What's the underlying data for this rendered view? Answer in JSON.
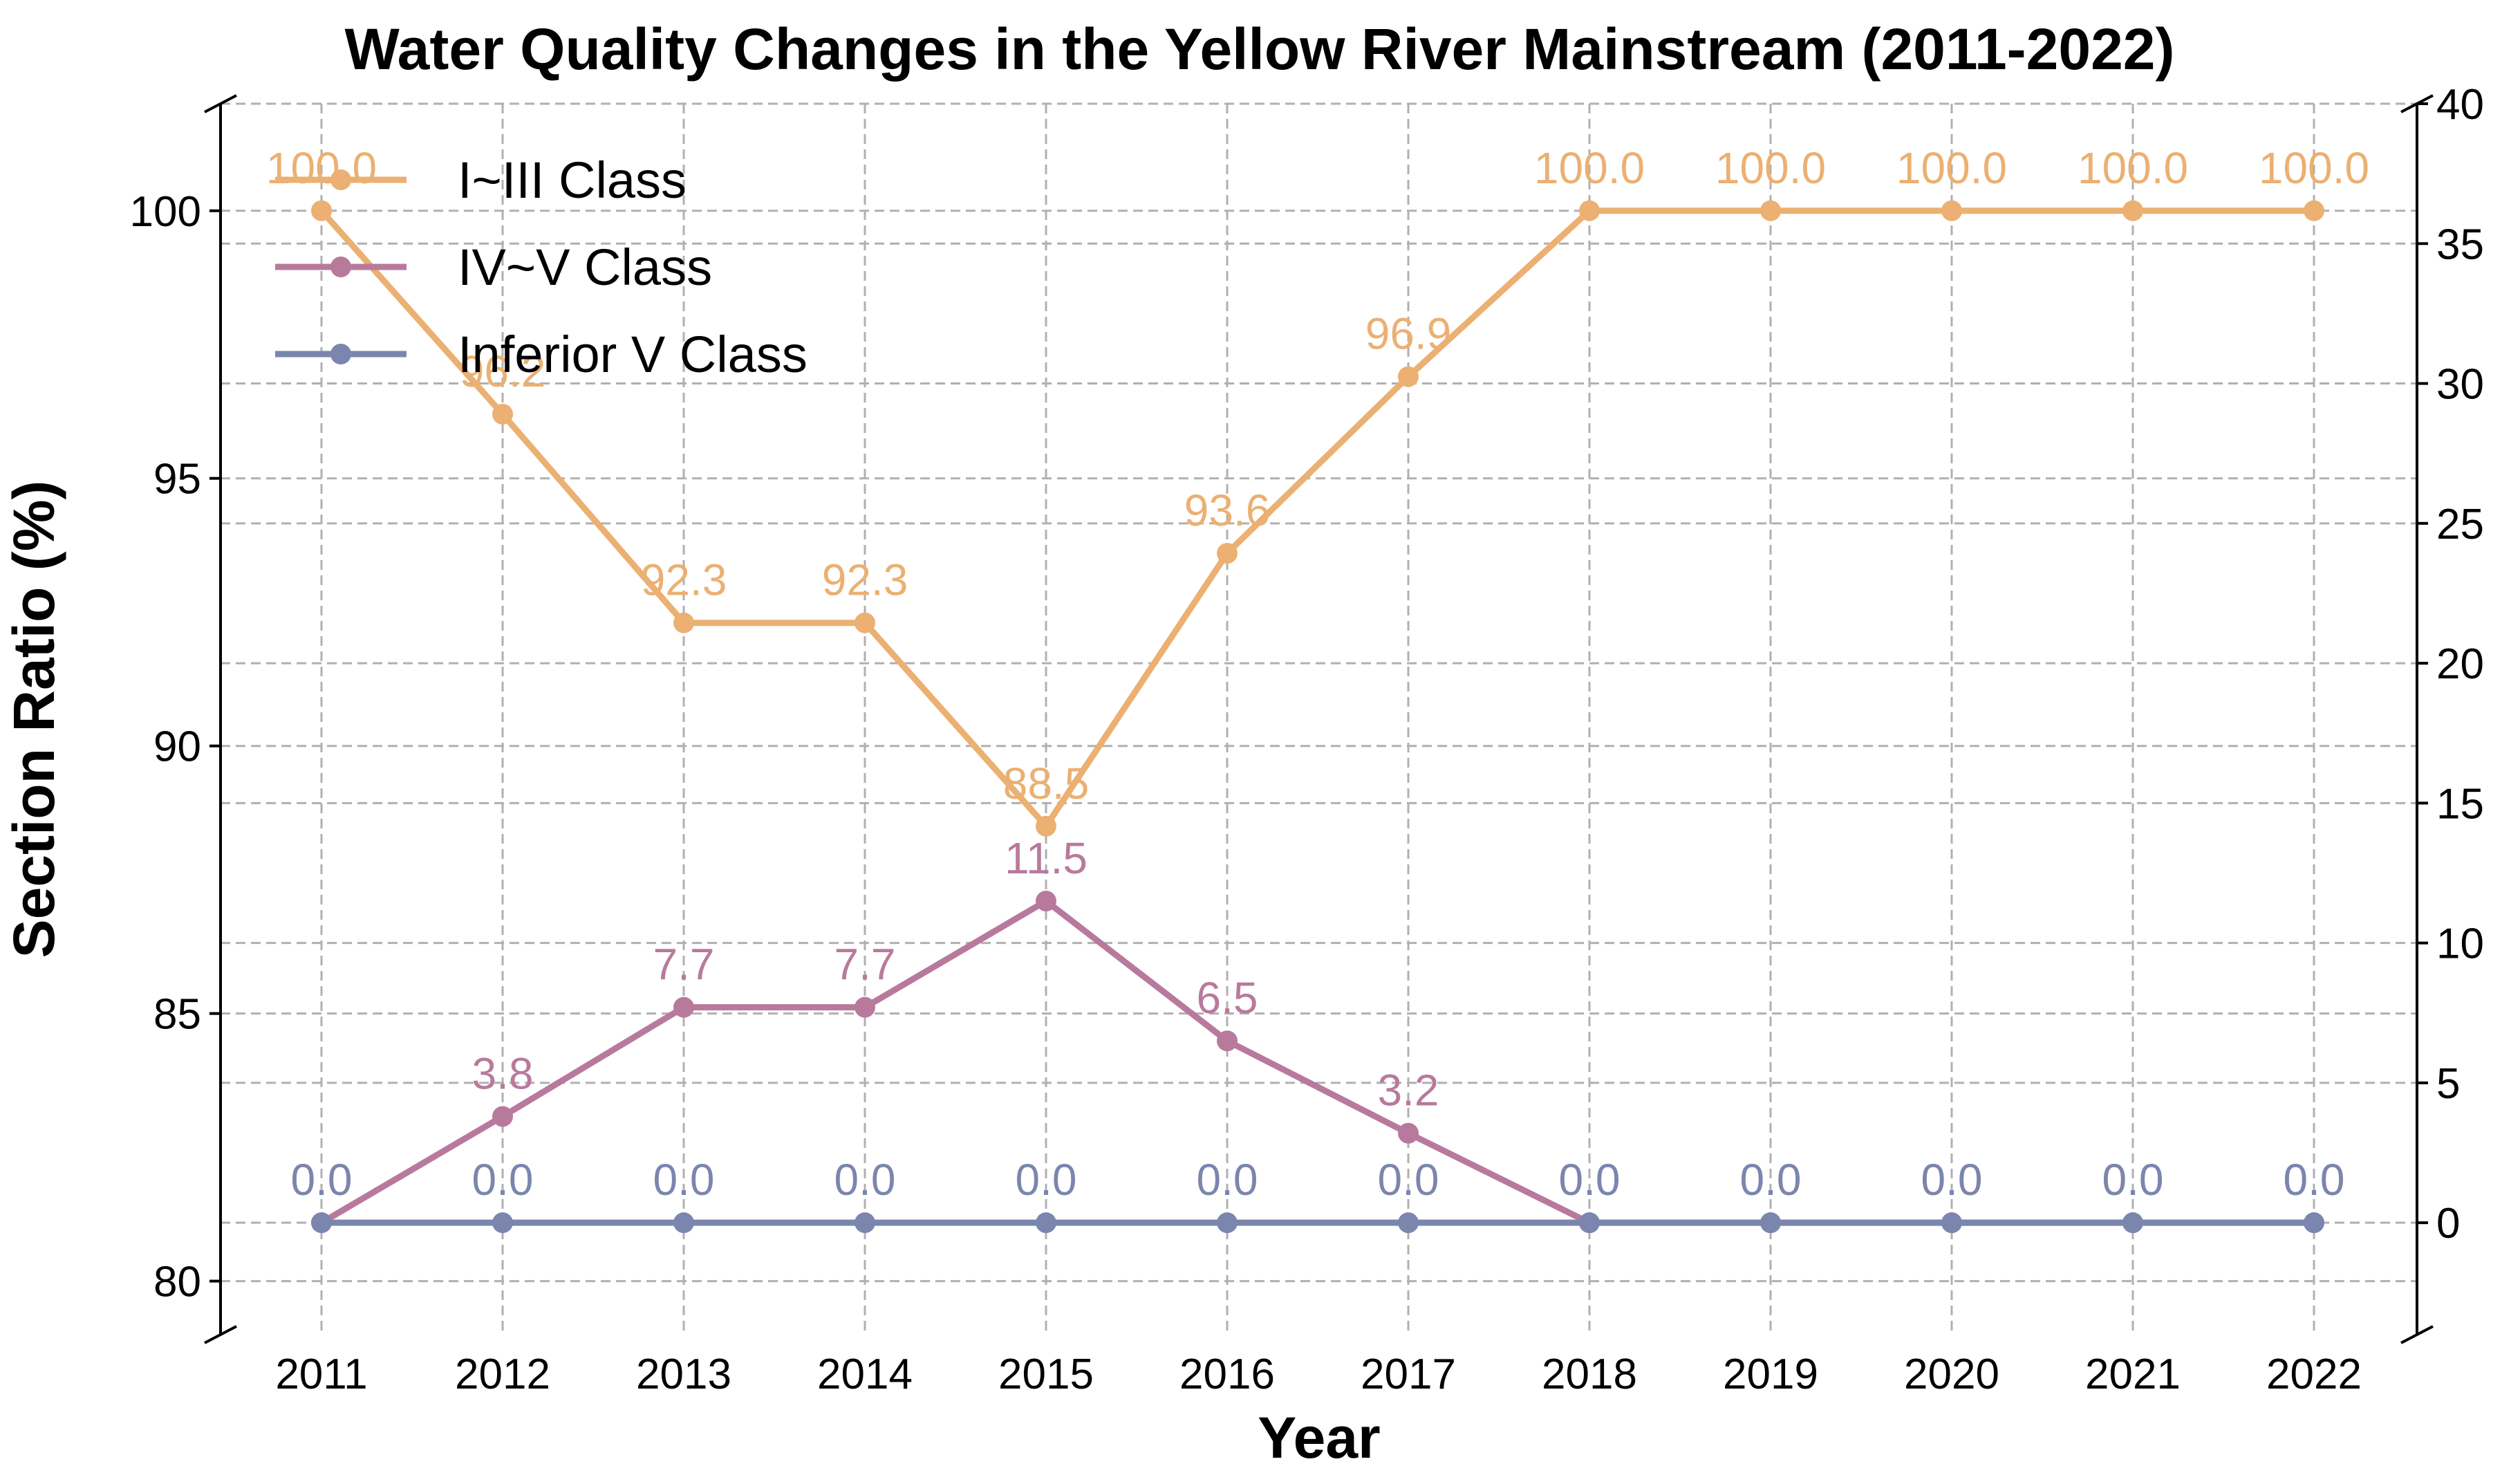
{
  "chart_data": {
    "type": "line",
    "title": "Water Quality Changes in the Yellow River Mainstream (2011-2022)",
    "xlabel": "Year",
    "ylabel": "Section Ratio (%)",
    "categories": [
      "2011",
      "2012",
      "2013",
      "2014",
      "2015",
      "2016",
      "2017",
      "2018",
      "2019",
      "2020",
      "2021",
      "2022"
    ],
    "left_axis": {
      "ylim": [
        79,
        102
      ],
      "ticks": [
        "80",
        "85",
        "90",
        "95",
        "100"
      ]
    },
    "right_axis": {
      "ylim": [
        -4,
        40
      ],
      "ticks": [
        "0",
        "5",
        "10",
        "15",
        "20",
        "25",
        "30",
        "35",
        "40"
      ]
    },
    "grid": true,
    "legend_position": "top-left",
    "series": [
      {
        "name": "I~III Class",
        "axis": "left",
        "color": "#EBB072",
        "values": [
          100.0,
          96.2,
          92.3,
          92.3,
          88.5,
          93.6,
          96.9,
          100.0,
          100.0,
          100.0,
          100.0,
          100.0
        ],
        "labels": [
          "100.0",
          "96.2",
          "92.3",
          "92.3",
          "88.5",
          "93.6",
          "96.9",
          "100.0",
          "100.0",
          "100.0",
          "100.0",
          "100.0"
        ]
      },
      {
        "name": "IV~V Class",
        "axis": "right",
        "color": "#B87A9C",
        "values": [
          0.0,
          3.8,
          7.7,
          7.7,
          11.5,
          6.5,
          3.2,
          0.0,
          0.0,
          0.0,
          0.0,
          0.0
        ],
        "labels": [
          "0.0",
          "3.8",
          "7.7",
          "7.7",
          "11.5",
          "6.5",
          "3.2",
          "0.0",
          "0.0",
          "0.0",
          "0.0",
          "0.0"
        ]
      },
      {
        "name": "Inferior V Class",
        "axis": "right",
        "color": "#7A86AE",
        "values": [
          0.0,
          0.0,
          0.0,
          0.0,
          0.0,
          0.0,
          0.0,
          0.0,
          0.0,
          0.0,
          0.0,
          0.0
        ],
        "labels": [
          "0.0",
          "0.0",
          "0.0",
          "0.0",
          "0.0",
          "0.0",
          "0.0",
          "0.0",
          "0.0",
          "0.0",
          "0.0",
          "0.0"
        ]
      }
    ]
  }
}
